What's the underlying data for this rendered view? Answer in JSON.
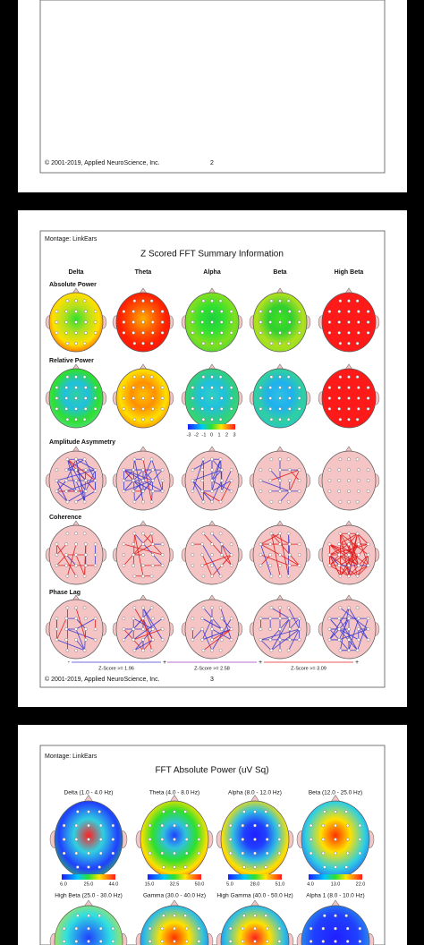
{
  "pages": [
    {
      "footer": {
        "copyright": "© 2001-2019, Applied NeuroScience, Inc.",
        "page_number": "2"
      }
    },
    {
      "montage": "Montage:  LinkEars",
      "title": "Z Scored FFT Summary Information",
      "columns": [
        "Delta",
        "Theta",
        "Alpha",
        "Beta",
        "High Beta"
      ],
      "rows": [
        "Absolute Power",
        "Relative Power",
        "Amplitude Asymmetry",
        "Coherence",
        "Phase Lag"
      ],
      "colorbar_labels": [
        "-3",
        "-2",
        "-1",
        "0",
        "1",
        "2",
        "3"
      ],
      "legend": [
        {
          "minus": "-",
          "label": "Z-Score >= 1.96",
          "plus": "+"
        },
        {
          "minus": "-",
          "label": "Z-Score >= 2.58",
          "plus": "+"
        },
        {
          "minus": "-",
          "label": "Z-Score >= 3.09",
          "plus": "+"
        }
      ],
      "footer": {
        "copyright": "© 2001-2019, Applied NeuroScience, Inc.",
        "page_number": "3"
      }
    },
    {
      "montage": "Montage:  LinkEars",
      "title": "FFT Absolute Power  (uV Sq)",
      "maps": [
        {
          "label": "Delta (1.0 - 4.0 Hz)",
          "scale": [
            "6.0",
            "25.0",
            "44.0"
          ]
        },
        {
          "label": "Theta (4.0 - 8.0 Hz)",
          "scale": [
            "15.0",
            "32.5",
            "50.0"
          ]
        },
        {
          "label": "Alpha (8.0 - 12.0 Hz)",
          "scale": [
            "5.0",
            "28.0",
            "51.0"
          ]
        },
        {
          "label": "Beta (12.0 - 25.0 Hz)",
          "scale": [
            "4.0",
            "13.0",
            "22.0"
          ]
        }
      ],
      "maps_row2": [
        "High Beta (25.0 - 30.0 Hz)",
        "Gamma (30.0 - 40.0 Hz)",
        "High Gamma (40.0 - 50.0 Hz)",
        "Alpha 1 (8.0 - 10.0 Hz)"
      ]
    }
  ]
}
